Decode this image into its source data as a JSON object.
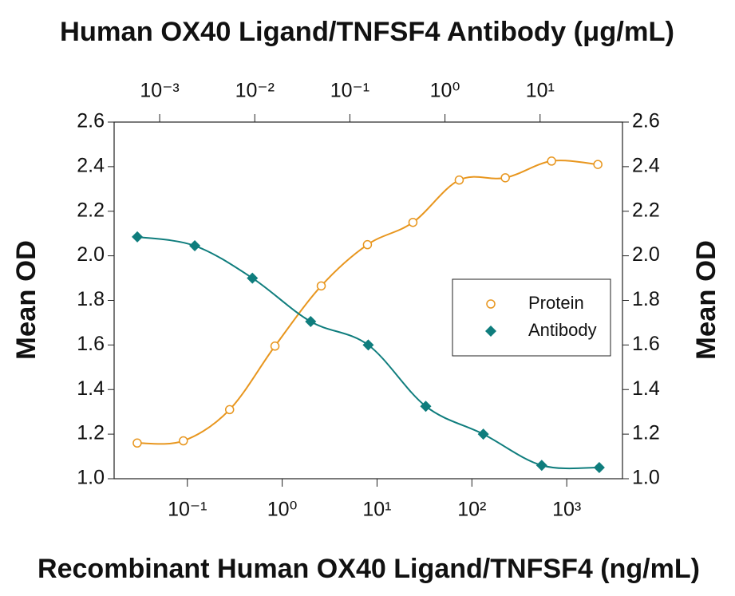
{
  "chart_data": {
    "type": "scatter",
    "title": "Human OX40 Ligand/TNFSF4 Antibody (μg/mL)",
    "x_label": "Recombinant Human OX40 Ligand/TNFSF4 (ng/mL)",
    "y_label": "Mean OD",
    "log_x": true,
    "xlim": [
      0.0169,
      3870
    ],
    "xticks": [
      {
        "value": 0.1,
        "label": "10⁻¹"
      },
      {
        "value": 1,
        "label": "10⁰"
      },
      {
        "value": 10,
        "label": "10¹"
      },
      {
        "value": 100,
        "label": "10²"
      },
      {
        "value": 1000,
        "label": "10³"
      }
    ],
    "x2lim": [
      0.000332,
      73.5
    ],
    "x2ticks": [
      {
        "value": 0.001,
        "label": "10⁻³"
      },
      {
        "value": 0.01,
        "label": "10⁻²"
      },
      {
        "value": 0.1,
        "label": "10⁻¹"
      },
      {
        "value": 1,
        "label": "10⁰"
      },
      {
        "value": 10,
        "label": "10¹"
      }
    ],
    "ylim": [
      1.0,
      2.6
    ],
    "yticks": [
      {
        "value": 1,
        "label": "1.0"
      },
      1.2,
      1.4,
      1.6,
      1.8,
      {
        "value": 2,
        "label": "2.0"
      },
      2.2,
      2.4,
      2.6
    ],
    "legend": "right",
    "series": [
      {
        "name": "Protein",
        "color": "#e8961e",
        "marker": "circle",
        "x": [
          0.0296,
          0.0908,
          0.279,
          0.839,
          2.58,
          7.92,
          23.9,
          73.5,
          225,
          692,
          2130
        ],
        "values": [
          1.16,
          1.17,
          1.31,
          1.595,
          1.865,
          2.05,
          2.15,
          2.34,
          2.35,
          2.425,
          2.41
        ]
      },
      {
        "name": "Antibody",
        "color": "#0f7d7d",
        "marker": "diamond",
        "axis": "x2",
        "x": [
          0.000582,
          0.00234,
          0.00944,
          0.0387,
          0.156,
          0.628,
          2.53,
          10.4,
          41.9
        ],
        "values": [
          2.085,
          2.045,
          1.9,
          1.705,
          1.6,
          1.325,
          1.2,
          1.06,
          1.05
        ]
      }
    ]
  }
}
